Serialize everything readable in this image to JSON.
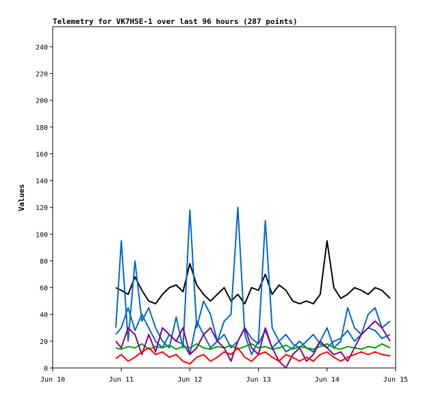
{
  "chart_data": {
    "type": "line",
    "title": "Telemetry for VK7HSE-1 over last 96 hours (287 points)",
    "xlabel": "",
    "ylabel": "Values",
    "xlim": [
      "Jun 10",
      "Jun 15"
    ],
    "ylim": [
      0,
      255
    ],
    "grid": false,
    "x_ticks": [
      "Jun 10",
      "Jun 11",
      "Jun 12",
      "Jun 13",
      "Jun 14",
      "Jun 15"
    ],
    "y_ticks": [
      0,
      20,
      40,
      60,
      80,
      100,
      120,
      140,
      160,
      180,
      200,
      220,
      240
    ],
    "x_days": [
      0.92,
      1.0,
      1.1,
      1.2,
      1.3,
      1.4,
      1.5,
      1.6,
      1.7,
      1.8,
      1.9,
      2.0,
      2.1,
      2.2,
      2.3,
      2.4,
      2.5,
      2.6,
      2.7,
      2.8,
      2.9,
      3.0,
      3.1,
      3.2,
      3.3,
      3.4,
      3.5,
      3.6,
      3.7,
      3.8,
      3.9,
      4.0,
      4.1,
      4.2,
      4.3,
      4.4,
      4.5,
      4.6,
      4.7,
      4.8,
      4.92
    ],
    "series": [
      {
        "color": "#000000",
        "values": [
          60,
          58,
          55,
          68,
          58,
          50,
          48,
          55,
          60,
          62,
          57,
          78,
          62,
          55,
          50,
          55,
          60,
          50,
          55,
          48,
          60,
          58,
          70,
          55,
          62,
          58,
          50,
          48,
          50,
          48,
          55,
          95,
          60,
          52,
          55,
          60,
          58,
          55,
          60,
          58,
          52
        ]
      },
      {
        "color": "#0066cc",
        "values": [
          30,
          95,
          20,
          80,
          35,
          45,
          30,
          20,
          15,
          38,
          15,
          118,
          30,
          50,
          40,
          20,
          35,
          40,
          120,
          25,
          10,
          20,
          110,
          30,
          20,
          12,
          15,
          20,
          15,
          12,
          20,
          30,
          15,
          20,
          45,
          30,
          25,
          40,
          45,
          30,
          35
        ]
      },
      {
        "color": "#0066cc",
        "values": [
          25,
          30,
          45,
          28,
          40,
          30,
          20,
          15,
          25,
          20,
          18,
          10,
          35,
          25,
          15,
          20,
          25,
          15,
          20,
          30,
          22,
          18,
          28,
          15,
          20,
          25,
          18,
          15,
          20,
          25,
          18,
          15,
          20,
          22,
          28,
          20,
          25,
          30,
          28,
          22,
          25
        ]
      },
      {
        "color": "#00a000",
        "values": [
          15,
          14,
          16,
          15,
          18,
          14,
          16,
          15,
          17,
          14,
          16,
          15,
          18,
          15,
          14,
          16,
          15,
          17,
          14,
          16,
          18,
          15,
          16,
          14,
          15,
          17,
          14,
          16,
          15,
          14,
          16,
          18,
          15,
          14,
          16,
          15,
          14,
          16,
          15,
          18,
          15
        ]
      },
      {
        "color": "#800080",
        "values": [
          20,
          15,
          30,
          25,
          10,
          25,
          12,
          30,
          25,
          20,
          30,
          10,
          15,
          25,
          30,
          20,
          15,
          5,
          20,
          30,
          15,
          10,
          30,
          15,
          5,
          0,
          10,
          15,
          5,
          10,
          20,
          15,
          10,
          12,
          5,
          15,
          25,
          30,
          35,
          30,
          20
        ]
      },
      {
        "color": "#ff0000",
        "values": [
          7,
          10,
          5,
          8,
          12,
          15,
          10,
          12,
          8,
          10,
          5,
          3,
          8,
          10,
          5,
          8,
          12,
          10,
          15,
          8,
          5,
          10,
          12,
          8,
          5,
          10,
          8,
          5,
          8,
          5,
          10,
          12,
          8,
          5,
          8,
          10,
          12,
          10,
          12,
          10,
          9
        ]
      }
    ]
  }
}
